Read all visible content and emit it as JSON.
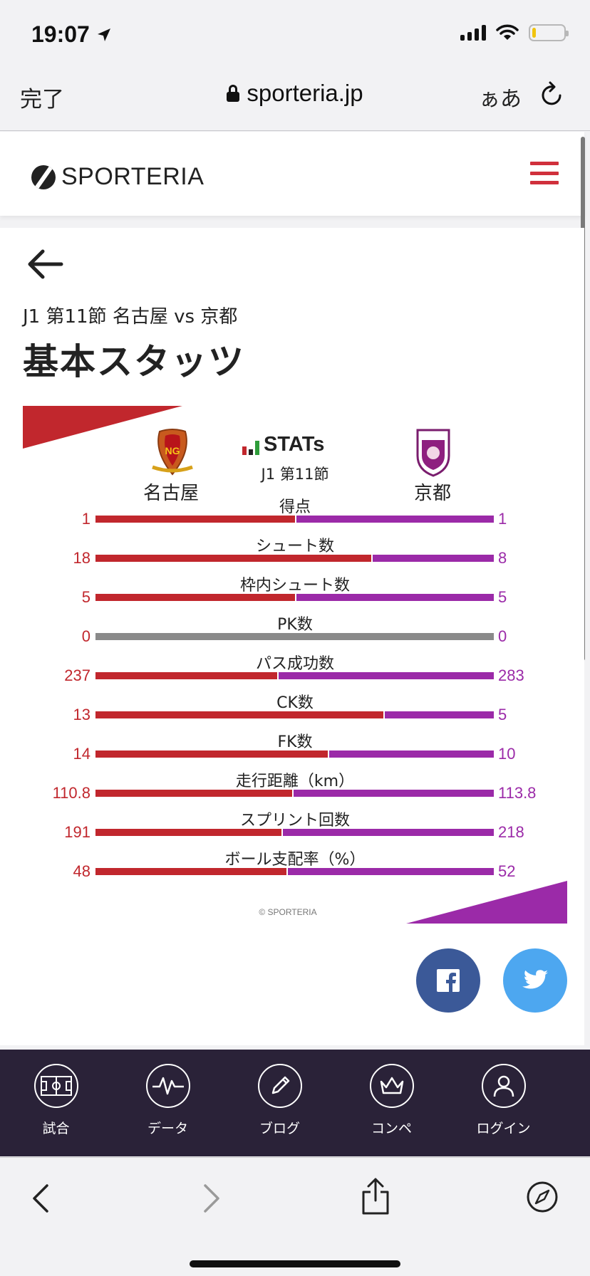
{
  "status_bar": {
    "time": "19:07"
  },
  "browser": {
    "done_label": "完了",
    "url": "sporteria.jp",
    "text_size_label": "ぁあ"
  },
  "site": {
    "logo_text": "SPORTERIA"
  },
  "page": {
    "breadcrumb": "J1 第11節 名古屋 vs 京都",
    "title": "基本スタッツ"
  },
  "match": {
    "home_team": "名古屋",
    "away_team": "京都",
    "stats_logo": "STATs",
    "round": "J1 第11節",
    "home_color": "#c1272d",
    "away_color": "#9b2aa8"
  },
  "stats": [
    {
      "label": "得点",
      "home": "1",
      "away": "1",
      "home_share": 0.5
    },
    {
      "label": "シュート数",
      "home": "18",
      "away": "8",
      "home_share": 0.692
    },
    {
      "label": "枠内シュート数",
      "home": "5",
      "away": "5",
      "home_share": 0.5
    },
    {
      "label": "PK数",
      "home": "0",
      "away": "0",
      "home_share": null
    },
    {
      "label": "パス成功数",
      "home": "237",
      "away": "283",
      "home_share": 0.456
    },
    {
      "label": "CK数",
      "home": "13",
      "away": "5",
      "home_share": 0.722
    },
    {
      "label": "FK数",
      "home": "14",
      "away": "10",
      "home_share": 0.583
    },
    {
      "label": "走行距離（km）",
      "home": "110.8",
      "away": "113.8",
      "home_share": 0.493
    },
    {
      "label": "スプリント回数",
      "home": "191",
      "away": "218",
      "home_share": 0.467
    },
    {
      "label": "ボール支配率（%）",
      "home": "48",
      "away": "52",
      "home_share": 0.48
    }
  ],
  "copyright": "© SPORTERIA",
  "site_nav": [
    {
      "label": "試合",
      "icon": "pitch-icon"
    },
    {
      "label": "データ",
      "icon": "pulse-icon"
    },
    {
      "label": "ブログ",
      "icon": "pencil-icon"
    },
    {
      "label": "コンペ",
      "icon": "crown-icon"
    },
    {
      "label": "ログイン",
      "icon": "user-icon"
    }
  ]
}
